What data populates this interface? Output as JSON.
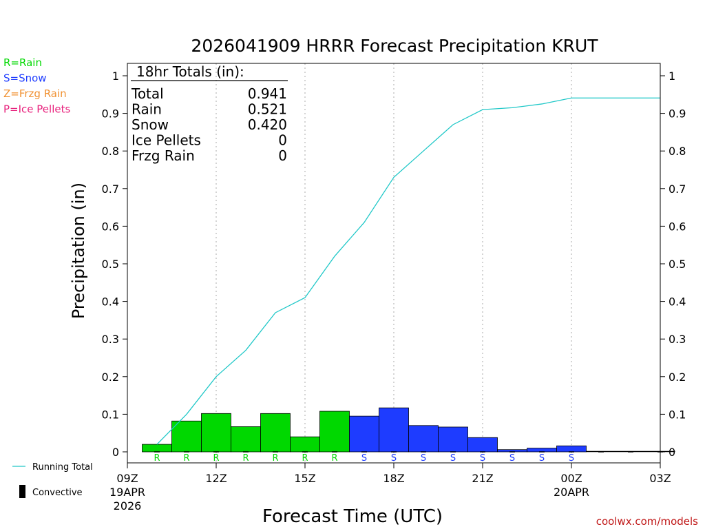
{
  "chart_data": {
    "type": "bar",
    "title": "2026041909 HRRR Forecast Precipitation KRUT",
    "xlabel": "Forecast Time (UTC)",
    "ylabel": "Precipitation (in)",
    "ylim": [
      0,
      1.0
    ],
    "yticks": [
      "0",
      "0.1",
      "0.2",
      "0.3",
      "0.4",
      "0.5",
      "0.6",
      "0.7",
      "0.8",
      "0.9",
      "1"
    ],
    "xlim": [
      0,
      18
    ],
    "xticks": [
      {
        "hour": 0,
        "label": "09Z",
        "sub1": "19APR",
        "sub2": "2026"
      },
      {
        "hour": 3,
        "label": "12Z",
        "sub1": "",
        "sub2": ""
      },
      {
        "hour": 6,
        "label": "15Z",
        "sub1": "",
        "sub2": ""
      },
      {
        "hour": 9,
        "label": "18Z",
        "sub1": "",
        "sub2": ""
      },
      {
        "hour": 12,
        "label": "21Z",
        "sub1": "",
        "sub2": ""
      },
      {
        "hour": 15,
        "label": "00Z",
        "sub1": "20APR",
        "sub2": ""
      },
      {
        "hour": 18,
        "label": "03Z",
        "sub1": "",
        "sub2": ""
      }
    ],
    "grid": "vertical dotted at 3-hour ticks",
    "bar_hours": [
      1,
      2,
      3,
      4,
      5,
      6,
      7,
      8,
      9,
      10,
      11,
      12,
      13,
      14,
      15,
      16,
      17,
      18
    ],
    "bar_values": [
      0.02,
      0.082,
      0.102,
      0.067,
      0.102,
      0.04,
      0.108,
      0.095,
      0.117,
      0.07,
      0.066,
      0.038,
      0.006,
      0.01,
      0.016,
      0.001,
      0.001,
      0.001
    ],
    "bar_types": [
      "R",
      "R",
      "R",
      "R",
      "R",
      "R",
      "R",
      "S",
      "S",
      "S",
      "S",
      "S",
      "S",
      "S",
      "S",
      "",
      "",
      ""
    ],
    "running_total": {
      "name": "Running Total",
      "hours": [
        1,
        2,
        3,
        4,
        5,
        6,
        7,
        8,
        9,
        10,
        11,
        12,
        13,
        14,
        15,
        16,
        17,
        18
      ],
      "values": [
        0.02,
        0.1,
        0.2,
        0.27,
        0.37,
        0.41,
        0.52,
        0.61,
        0.73,
        0.8,
        0.87,
        0.91,
        0.915,
        0.925,
        0.941,
        0.941,
        0.941,
        0.941
      ]
    },
    "colors": {
      "rain": "#00d800",
      "snow": "#1e3cff",
      "frzg_rain": "#f09030",
      "ice_pellets": "#e8207c",
      "running_total": "#20c8c8",
      "convective": "#000000"
    },
    "type_legend": [
      {
        "text": "R=Rain",
        "color": "#00d800"
      },
      {
        "text": "S=Snow",
        "color": "#1e3cff"
      },
      {
        "text": "Z=Frzg Rain",
        "color": "#f09030"
      },
      {
        "text": "P=Ice Pellets",
        "color": "#e8207c"
      }
    ],
    "totals_box": {
      "header": "18hr Totals (in):",
      "rows": [
        {
          "label": "Total",
          "value": "0.941"
        },
        {
          "label": "Rain",
          "value": "0.521"
        },
        {
          "label": "Snow",
          "value": "0.420"
        },
        {
          "label": "Ice Pellets",
          "value": "0"
        },
        {
          "label": "Frzg Rain",
          "value": "0"
        }
      ]
    },
    "line_legend": [
      {
        "text": "Running Total"
      },
      {
        "text": "Convective"
      }
    ],
    "credit": "coolwx.com/models"
  }
}
